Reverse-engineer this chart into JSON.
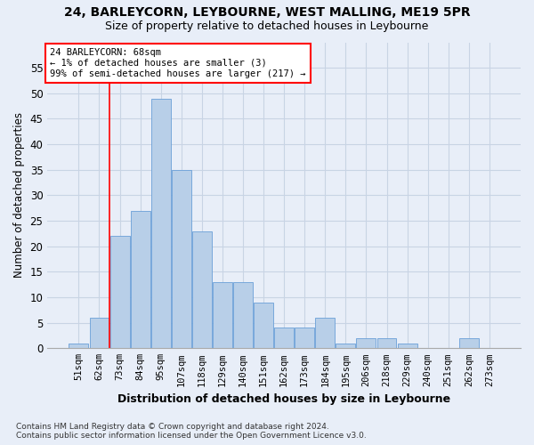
{
  "title_line1": "24, BARLEYCORN, LEYBOURNE, WEST MALLING, ME19 5PR",
  "title_line2": "Size of property relative to detached houses in Leybourne",
  "xlabel": "Distribution of detached houses by size in Leybourne",
  "ylabel": "Number of detached properties",
  "bar_labels": [
    "51sqm",
    "62sqm",
    "73sqm",
    "84sqm",
    "95sqm",
    "107sqm",
    "118sqm",
    "129sqm",
    "140sqm",
    "151sqm",
    "162sqm",
    "173sqm",
    "184sqm",
    "195sqm",
    "206sqm",
    "218sqm",
    "229sqm",
    "240sqm",
    "251sqm",
    "262sqm",
    "273sqm"
  ],
  "bar_values": [
    1,
    6,
    22,
    27,
    49,
    35,
    23,
    13,
    13,
    9,
    4,
    4,
    6,
    1,
    2,
    2,
    1,
    0,
    0,
    2,
    0
  ],
  "bar_color": "#b8cfe8",
  "bar_edge_color": "#6a9fd8",
  "grid_color": "#c8d4e4",
  "bg_color": "#e8eef8",
  "red_line_x": 1.5,
  "annotation_text": "24 BARLEYCORN: 68sqm\n← 1% of detached houses are smaller (3)\n99% of semi-detached houses are larger (217) →",
  "annotation_box_color": "white",
  "annotation_box_edge": "red",
  "ylim": [
    0,
    60
  ],
  "yticks": [
    0,
    5,
    10,
    15,
    20,
    25,
    30,
    35,
    40,
    45,
    50,
    55
  ],
  "footer_line1": "Contains HM Land Registry data © Crown copyright and database right 2024.",
  "footer_line2": "Contains public sector information licensed under the Open Government Licence v3.0."
}
